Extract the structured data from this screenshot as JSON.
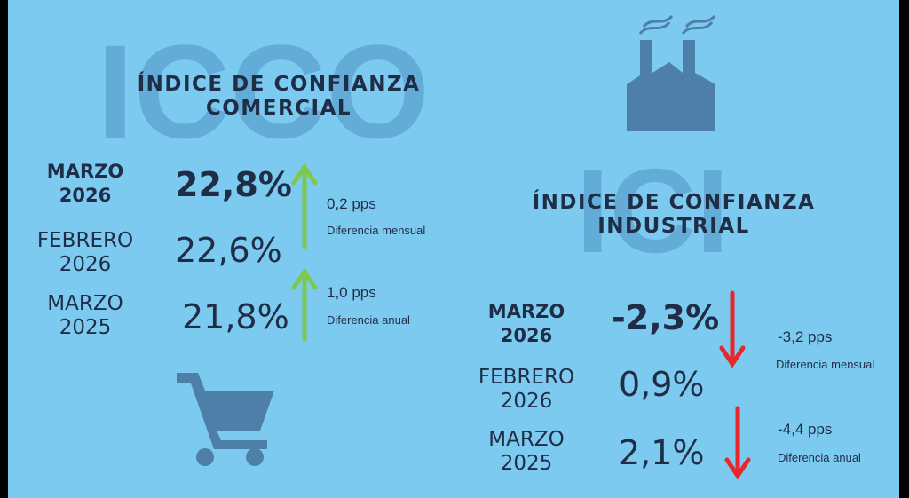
{
  "left": {
    "watermark": "ICCO",
    "title": [
      "ÍNDICE DE CONFIANZA",
      "COMERCIAL"
    ],
    "rows": [
      {
        "period": [
          "MARZO",
          "2026"
        ],
        "value": "22,8%"
      },
      {
        "period": [
          "FEBRERO",
          "2026"
        ],
        "value": "22,6%"
      },
      {
        "period": [
          "MARZO",
          "2025"
        ],
        "value": "21,8%"
      }
    ],
    "changes": [
      {
        "value": "0,2 pps",
        "label": "Diferencia mensual"
      },
      {
        "value": "1,0 pps",
        "label": "Diferencia anual"
      }
    ]
  },
  "right": {
    "watermark": "ICI",
    "title": [
      "ÍNDICE DE CONFIANZA",
      "INDUSTRIAL"
    ],
    "rows": [
      {
        "period": [
          "MARZO",
          "2026"
        ],
        "value": "-2,3%"
      },
      {
        "period": [
          "FEBRERO",
          "2026"
        ],
        "value": "0,9%"
      },
      {
        "period": [
          "MARZO",
          "2025"
        ],
        "value": "2,1%"
      }
    ],
    "changes": [
      {
        "value": "-3,2 pps",
        "label": "Diferencia mensual"
      },
      {
        "value": "-4,4 pps",
        "label": "Diferencia anual"
      }
    ]
  }
}
